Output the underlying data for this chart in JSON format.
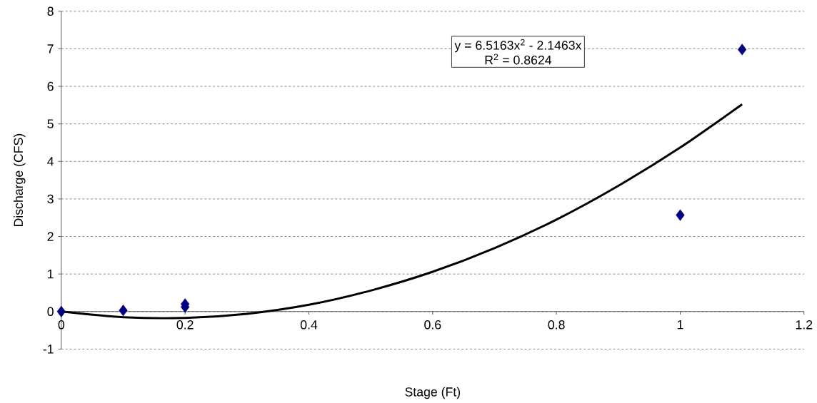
{
  "chart_data": {
    "type": "scatter",
    "xlabel": "Stage (Ft)",
    "ylabel": "Discharge (CFS)",
    "xlim": [
      0,
      1.2
    ],
    "ylim": [
      -1,
      8
    ],
    "xticks": [
      0,
      0.2,
      0.4,
      0.6,
      0.8,
      1,
      1.2
    ],
    "yticks": [
      -1,
      0,
      1,
      2,
      3,
      4,
      5,
      6,
      7,
      8
    ],
    "grid": "y",
    "marker": "diamond",
    "series": [
      {
        "color": "#000080",
        "x": [
          0,
          0.1,
          0.2,
          0.2,
          1,
          1.1
        ],
        "values": [
          0,
          0.03,
          0.2,
          0.12,
          2.57,
          6.98
        ]
      },
      {
        "type": "line",
        "marker": "none",
        "color": "#000000",
        "x": [
          0,
          0.1,
          0.2,
          0.3,
          0.4,
          0.5,
          0.6,
          0.7,
          0.8,
          0.9,
          1.0,
          1.1
        ],
        "values": [
          0,
          -0.15,
          -0.17,
          -0.06,
          0.18,
          0.56,
          1.06,
          1.69,
          2.45,
          3.35,
          4.37,
          5.52
        ]
      }
    ],
    "annotations": [
      "y = 6.5163x$^{2}$ - 2.1463x",
      "R$^{2}$ = 0.8624"
    ]
  }
}
